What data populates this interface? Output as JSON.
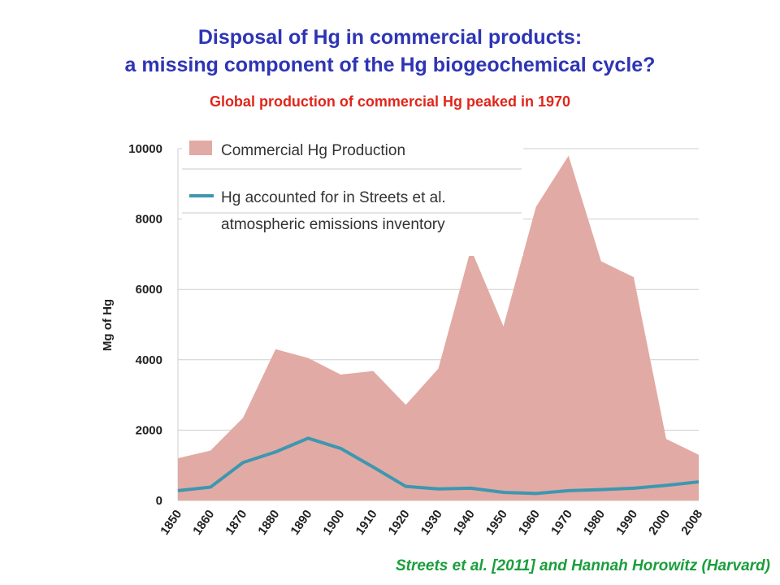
{
  "header": {
    "title_line1": "Disposal of Hg in commercial products:",
    "title_line2": "a missing component of the Hg biogeochemical cycle?",
    "subtitle": "Global production of commercial Hg peaked in 1970"
  },
  "credit": "Streets et al. [2011] and Hannah Horowitz (Harvard)",
  "chart_data": {
    "type": "area",
    "ylabel": "Mg of Hg",
    "xlabel": "",
    "ylim": [
      0,
      10000
    ],
    "yticks": [
      0,
      2000,
      4000,
      6000,
      8000,
      10000
    ],
    "categories": [
      "1850",
      "1860",
      "1870",
      "1880",
      "1890",
      "1900",
      "1910",
      "1920",
      "1930",
      "1940",
      "1950",
      "1960",
      "1970",
      "1980",
      "1990",
      "2000",
      "2008"
    ],
    "grid": "horizontal",
    "legend_position": "top-left",
    "series": [
      {
        "name": "Commercial Hg Production",
        "kind": "area",
        "color": "#e2aaa4",
        "values": [
          1200,
          1420,
          2350,
          4300,
          4050,
          3580,
          3680,
          2720,
          3750,
          7150,
          4950,
          8350,
          9800,
          6800,
          6350,
          1750,
          1300
        ]
      },
      {
        "name": "Hg accounted for in Streets et al. atmospheric emissions inventory",
        "legend_lines": [
          "Hg accounted for in Streets et al.",
          "atmospheric emissions inventory"
        ],
        "kind": "line",
        "color": "#3d97b0",
        "values": [
          280,
          380,
          1080,
          1380,
          1770,
          1480,
          950,
          400,
          330,
          350,
          230,
          200,
          280,
          310,
          350,
          430,
          530
        ]
      }
    ]
  }
}
